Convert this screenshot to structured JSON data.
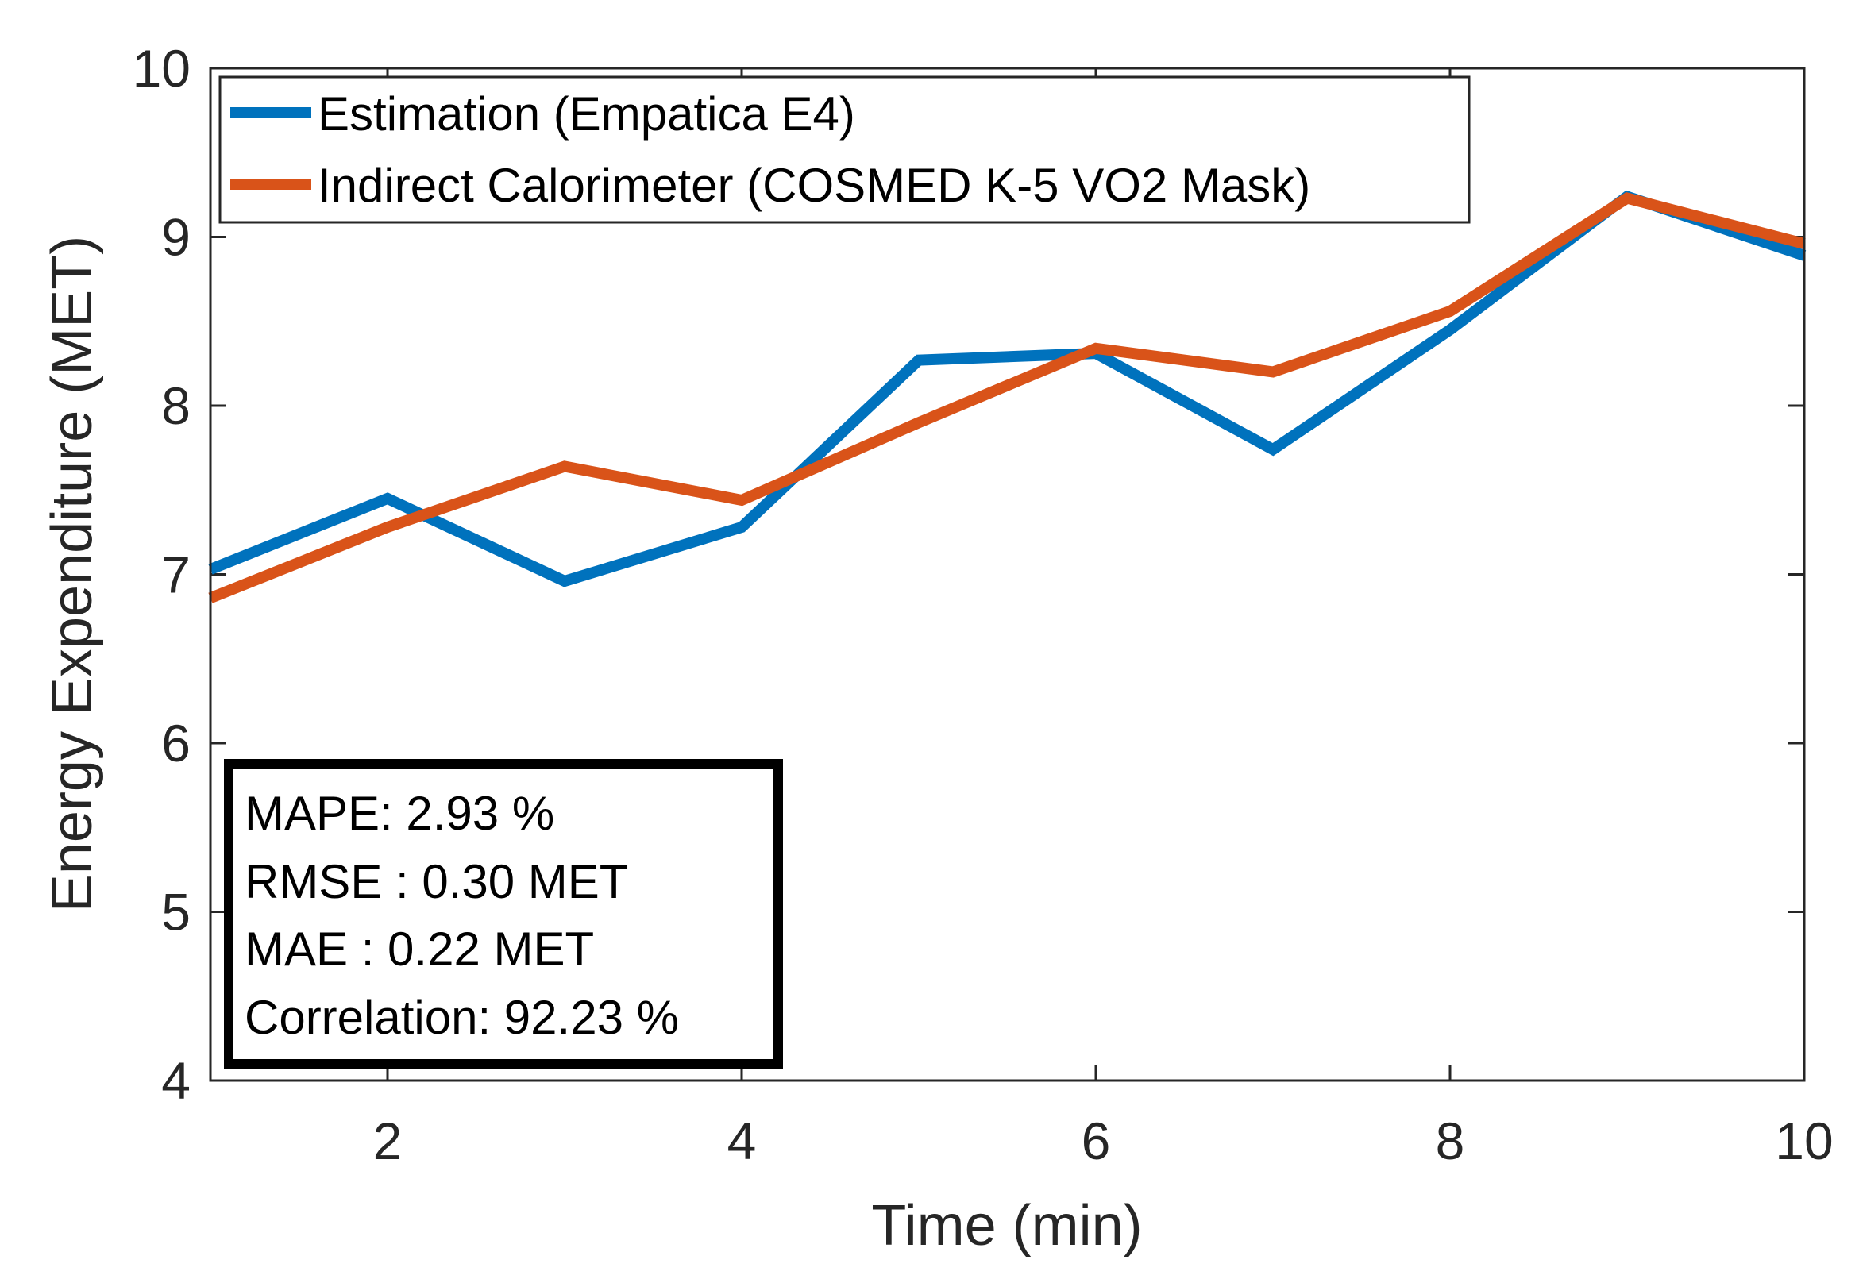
{
  "chart_data": {
    "type": "line",
    "title": "",
    "xlabel": "Time (min)",
    "ylabel": "Energy Expenditure (MET)",
    "xlim": [
      1,
      10
    ],
    "ylim": [
      4,
      10
    ],
    "xticks": [
      2,
      4,
      6,
      8,
      10
    ],
    "yticks": [
      4,
      5,
      6,
      7,
      8,
      9,
      10
    ],
    "grid": false,
    "legend_position": "top-left",
    "x": [
      1,
      2,
      3,
      4,
      5,
      6,
      7,
      8,
      9,
      10
    ],
    "series": [
      {
        "name": "Estimation (Empatica E4)",
        "color": "#0072BD",
        "values": [
          7.03,
          7.45,
          6.96,
          7.28,
          8.27,
          8.31,
          7.74,
          8.45,
          9.24,
          8.89
        ]
      },
      {
        "name": "Indirect Calorimeter (COSMED K-5 VO2 Mask)",
        "color": "#D95319",
        "values": [
          6.86,
          7.28,
          7.64,
          7.44,
          7.9,
          8.34,
          8.2,
          8.56,
          9.23,
          8.96
        ]
      }
    ],
    "annotation": {
      "lines": [
        "MAPE: 2.93 %",
        "RMSE : 0.30 MET",
        "MAE : 0.22 MET",
        "Correlation: 92.23 %"
      ]
    }
  }
}
